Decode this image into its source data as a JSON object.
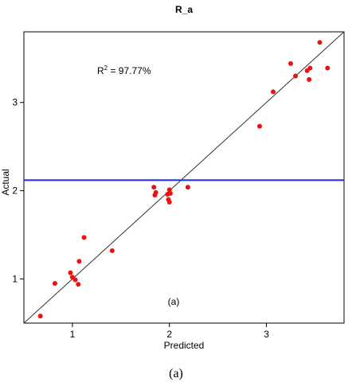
{
  "chart_data": {
    "type": "scatter",
    "title": "R_a",
    "xlabel": "Predicted",
    "ylabel": "Actual",
    "xlim": [
      0.5,
      3.8
    ],
    "ylim": [
      0.5,
      3.8
    ],
    "x_ticks": [
      1,
      2,
      3
    ],
    "y_ticks": [
      1,
      2,
      3
    ],
    "grid": false,
    "annotations": {
      "r2_prefix": "R",
      "r2_sup": "2",
      "r2_value": " = 97.77%",
      "panel_label": "(a)"
    },
    "reference_line": {
      "type": "diagonal",
      "from": [
        0.5,
        0.5
      ],
      "to": [
        3.8,
        3.8
      ],
      "color": "#333333"
    },
    "horizontal_line": {
      "y": 2.12,
      "color": "#1c2bd6"
    },
    "point_color": "#ee1111",
    "points": [
      {
        "x": 0.67,
        "y": 0.58
      },
      {
        "x": 0.82,
        "y": 0.95
      },
      {
        "x": 0.98,
        "y": 1.07
      },
      {
        "x": 1.0,
        "y": 1.02
      },
      {
        "x": 1.03,
        "y": 0.99
      },
      {
        "x": 1.06,
        "y": 0.94
      },
      {
        "x": 1.07,
        "y": 1.2
      },
      {
        "x": 1.12,
        "y": 1.47
      },
      {
        "x": 1.41,
        "y": 1.32
      },
      {
        "x": 1.84,
        "y": 2.04
      },
      {
        "x": 1.85,
        "y": 1.95
      },
      {
        "x": 1.86,
        "y": 1.98
      },
      {
        "x": 1.98,
        "y": 1.96
      },
      {
        "x": 1.99,
        "y": 1.9
      },
      {
        "x": 2.0,
        "y": 2.01
      },
      {
        "x": 2.0,
        "y": 1.87
      },
      {
        "x": 2.01,
        "y": 1.97
      },
      {
        "x": 2.19,
        "y": 2.04
      },
      {
        "x": 2.93,
        "y": 2.73
      },
      {
        "x": 3.07,
        "y": 3.12
      },
      {
        "x": 3.25,
        "y": 3.44
      },
      {
        "x": 3.3,
        "y": 3.3
      },
      {
        "x": 3.42,
        "y": 3.36
      },
      {
        "x": 3.44,
        "y": 3.26
      },
      {
        "x": 3.45,
        "y": 3.39
      },
      {
        "x": 3.55,
        "y": 3.68
      },
      {
        "x": 3.63,
        "y": 3.39
      }
    ]
  },
  "caption": "(a)"
}
